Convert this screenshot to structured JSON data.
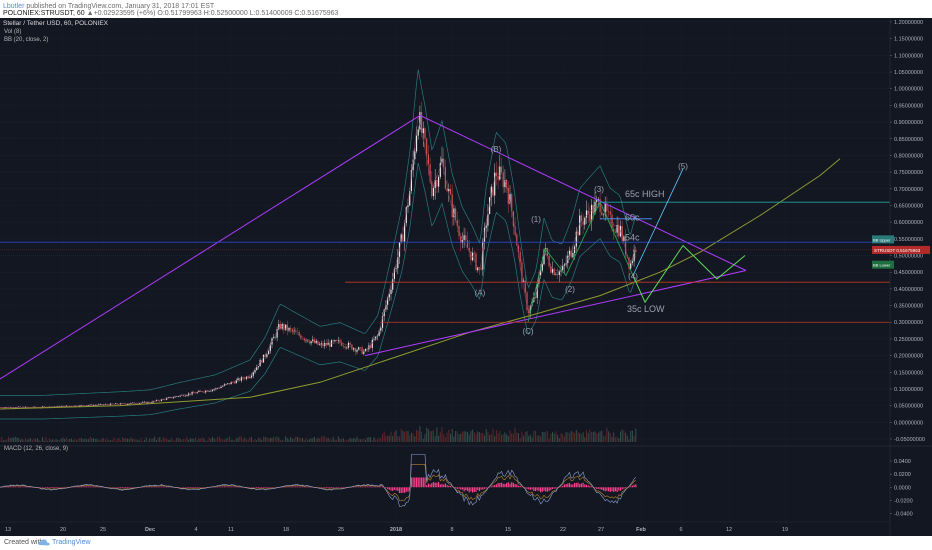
{
  "header": {
    "author": "Lbutler",
    "published": "published on TradingView.com, January 31, 2018 17:01 EST",
    "symbol": "POLONIEX:STRUSDT, 60",
    "ohlc": "▲+0.02923595 (+6%) O:0.51799963 H:0.52500000 L:0.51400009 C:0.51675963"
  },
  "legend": {
    "title": "Stellar / Tether USD, 60, POLONIEX",
    "vol": "Vol (8)",
    "bb": "BB (20, close, 2)",
    "macd": "MACD (12, 26, close, 9)"
  },
  "footer": {
    "created": "Created with",
    "brand": "TradingView"
  },
  "colors": {
    "background": "#131722",
    "candle_up": "#e8e8e8",
    "candle_down": "#d9534f",
    "bb_band": "#2a8c8c",
    "bb_basis": "#8a4a66",
    "long_ma": "#8f9a2e",
    "triangle": "#b03cff",
    "level_top": "#1fa3a3",
    "level_mid": "#2b47c9",
    "level_red": "#c0392b",
    "projection_blue": "#5ec8ff",
    "projection_green": "#5ed957",
    "wave_green": "#27a14a",
    "macd_hist": "#ff3f8a",
    "macd_line": "#5a6b9a",
    "signal_line": "#e0a030"
  },
  "chart_data": {
    "type": "line",
    "title": "Stellar / Tether USD, 60, POLONIEX",
    "xlabel": "",
    "ylabel": "",
    "ylim": [
      0,
      1.2
    ],
    "x_ticks": [
      "13",
      "20",
      "25",
      "Dec",
      "4",
      "11",
      "18",
      "25",
      "2018",
      "8",
      "15",
      "22",
      "27",
      "Feb",
      "6",
      "12",
      "19"
    ],
    "y_ticks": [
      "1.20000000",
      "1.15000000",
      "1.10000000",
      "1.05000000",
      "1.00000000",
      "0.95000000",
      "0.90000000",
      "0.85000000",
      "0.80000000",
      "0.75000000",
      "0.70000000",
      "0.65000000",
      "0.60000000",
      "0.55000000",
      "0.50000000",
      "0.45000000",
      "0.40000000",
      "0.35000000",
      "0.30000000",
      "0.25000000",
      "0.20000000",
      "0.15000000",
      "0.10000000",
      "0.05000000",
      "0.00000000",
      "-0.05000000"
    ],
    "price_path": [
      [
        0,
        0.045
      ],
      [
        40,
        0.045
      ],
      [
        80,
        0.05
      ],
      [
        120,
        0.055
      ],
      [
        150,
        0.06
      ],
      [
        180,
        0.08
      ],
      [
        215,
        0.1
      ],
      [
        250,
        0.14
      ],
      [
        265,
        0.2
      ],
      [
        280,
        0.29
      ],
      [
        300,
        0.26
      ],
      [
        320,
        0.23
      ],
      [
        340,
        0.24
      ],
      [
        365,
        0.21
      ],
      [
        378,
        0.26
      ],
      [
        390,
        0.4
      ],
      [
        402,
        0.55
      ],
      [
        410,
        0.7
      ],
      [
        418,
        0.92
      ],
      [
        425,
        0.82
      ],
      [
        432,
        0.7
      ],
      [
        442,
        0.78
      ],
      [
        452,
        0.64
      ],
      [
        462,
        0.55
      ],
      [
        472,
        0.5
      ],
      [
        480,
        0.45
      ],
      [
        486,
        0.6
      ],
      [
        496,
        0.75
      ],
      [
        506,
        0.72
      ],
      [
        514,
        0.6
      ],
      [
        520,
        0.47
      ],
      [
        528,
        0.33
      ],
      [
        536,
        0.38
      ],
      [
        544,
        0.52
      ],
      [
        552,
        0.46
      ],
      [
        562,
        0.45
      ],
      [
        572,
        0.52
      ],
      [
        580,
        0.6
      ],
      [
        590,
        0.63
      ],
      [
        600,
        0.66
      ],
      [
        610,
        0.6
      ],
      [
        620,
        0.58
      ],
      [
        630,
        0.47
      ],
      [
        636,
        0.53
      ]
    ],
    "series": [
      {
        "name": "BB Upper",
        "value": 0.5484
      },
      {
        "name": "STRUSDT",
        "value": 0.51675963
      },
      {
        "name": "BB Lower",
        "value": 0.4726
      }
    ],
    "levels": [
      0.66,
      0.54,
      0.42,
      0.3
    ],
    "annotations": [
      {
        "text": "(B)",
        "x": 496,
        "y": 0.81
      },
      {
        "text": "(A)",
        "x": 480,
        "y": 0.38
      },
      {
        "text": "(C)",
        "x": 528,
        "y": 0.265
      },
      {
        "text": "(1)",
        "x": 536,
        "y": 0.6
      },
      {
        "text": "(2)",
        "x": 570,
        "y": 0.39
      },
      {
        "text": "(3)",
        "x": 599,
        "y": 0.69
      },
      {
        "text": "(4)",
        "x": 633,
        "y": 0.43
      },
      {
        "text": "(5)",
        "x": 683,
        "y": 0.76
      },
      {
        "text": "65c HIGH",
        "x": 625,
        "y": 0.675
      },
      {
        "text": "60c",
        "x": 625,
        "y": 0.605
      },
      {
        "text": "54c",
        "x": 625,
        "y": 0.545
      },
      {
        "text": "35c LOW",
        "x": 627,
        "y": 0.33
      }
    ],
    "macd_ticks": [
      "0.0400",
      "0.0200",
      "0.0000",
      "-0.0200",
      "-0.0400"
    ],
    "macd_ylim": [
      -0.05,
      0.06
    ]
  }
}
